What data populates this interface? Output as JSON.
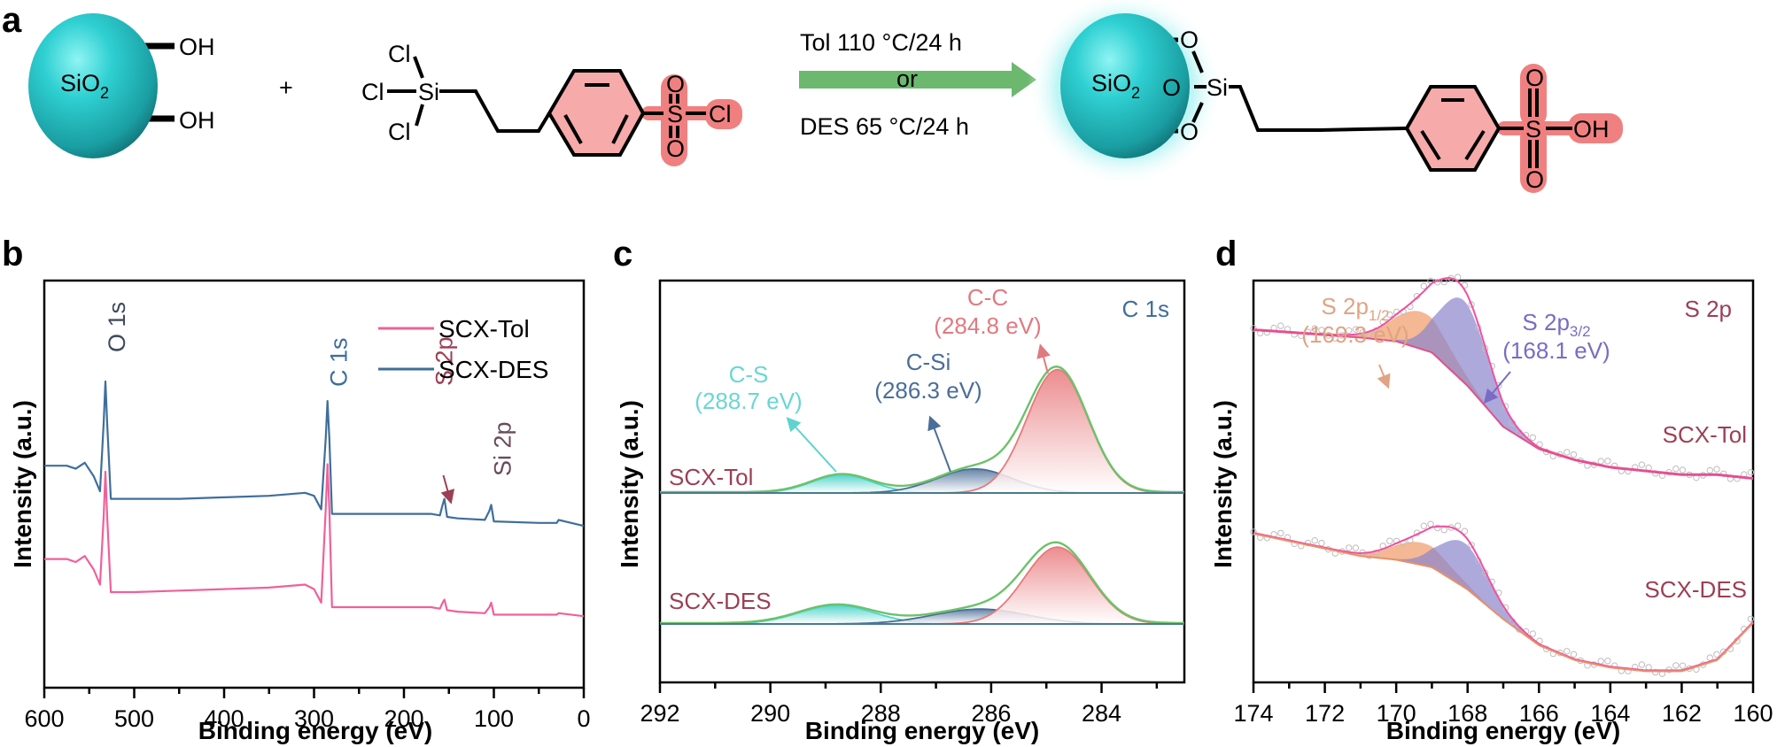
{
  "figure": {
    "panel_letters": [
      "a",
      "b",
      "c",
      "d"
    ],
    "scheme": {
      "reactant_sphere_label": "SiO",
      "reactant_sphere_sub": "2",
      "hydroxyl_labels": [
        "OH",
        "OH"
      ],
      "plus": "+",
      "silane_atoms": {
        "cl_top": "Cl",
        "cl_left": "Cl",
        "cl_bottom": "Cl",
        "si": "Si"
      },
      "sulfonyl_atoms": {
        "o_top": "O",
        "s": "S",
        "cl": "Cl",
        "o_bottom": "O"
      },
      "condition_top": "Tol  110 °C/24 h",
      "condition_mid": "or",
      "condition_bottom": "DES  65 °C/24 h",
      "product_sphere_label": "SiO",
      "product_sphere_sub": "2",
      "product_atoms": {
        "o1": "O",
        "o2": "O",
        "o3": "O",
        "si": "Si",
        "o_top": "O",
        "s": "S",
        "oh": "OH",
        "o_bottom": "O"
      },
      "colors": {
        "sphere": "#2ec9cc",
        "arrow": "#6db86f",
        "highlight": "#f08080"
      }
    }
  },
  "chart_data": [
    {
      "id": "b",
      "type": "line",
      "title": "",
      "xlabel": "Binding energy (eV)",
      "ylabel": "Intensity (a.u.)",
      "xlim": [
        600,
        0
      ],
      "x_reversed": true,
      "xticks": [
        600,
        500,
        400,
        300,
        200,
        100,
        0
      ],
      "xtick_labels": [
        "600",
        "500",
        "400",
        "300",
        "200",
        "100",
        "0"
      ],
      "legend": {
        "position": "top-right",
        "entries": [
          {
            "name": "SCX-Tol",
            "color": "#f0609a"
          },
          {
            "name": "SCX-DES",
            "color": "#3f6e9c"
          }
        ]
      },
      "series": [
        {
          "name": "SCX-DES",
          "color": "#3f6e9c",
          "offset": 1.0,
          "x": [
            600,
            575,
            565,
            555,
            545,
            538,
            534,
            532,
            530,
            526,
            500,
            450,
            400,
            350,
            310,
            300,
            292,
            287,
            285,
            283,
            280,
            250,
            200,
            170,
            160,
            157,
            155,
            152,
            140,
            110,
            105,
            103,
            100,
            50,
            30,
            28,
            0
          ],
          "y": [
            0.62,
            0.62,
            0.6,
            0.64,
            0.55,
            0.45,
            0.9,
            1.18,
            0.9,
            0.4,
            0.4,
            0.4,
            0.41,
            0.42,
            0.44,
            0.42,
            0.33,
            0.8,
            1.05,
            0.8,
            0.3,
            0.3,
            0.3,
            0.3,
            0.29,
            0.36,
            0.4,
            0.28,
            0.27,
            0.26,
            0.32,
            0.36,
            0.25,
            0.24,
            0.24,
            0.26,
            0.22
          ]
        },
        {
          "name": "SCX-Tol",
          "color": "#f0609a",
          "offset": 0.0,
          "x": [
            600,
            575,
            565,
            555,
            545,
            538,
            534,
            532,
            530,
            526,
            500,
            450,
            400,
            350,
            310,
            300,
            292,
            287,
            285,
            283,
            280,
            250,
            200,
            170,
            160,
            157,
            155,
            152,
            140,
            110,
            105,
            103,
            100,
            50,
            30,
            28,
            0
          ],
          "y": [
            0.62,
            0.62,
            0.6,
            0.64,
            0.55,
            0.45,
            0.9,
            1.2,
            0.9,
            0.4,
            0.4,
            0.41,
            0.42,
            0.43,
            0.45,
            0.42,
            0.33,
            0.95,
            1.25,
            0.95,
            0.3,
            0.3,
            0.3,
            0.3,
            0.29,
            0.33,
            0.35,
            0.28,
            0.27,
            0.26,
            0.3,
            0.33,
            0.25,
            0.25,
            0.25,
            0.26,
            0.24
          ]
        }
      ],
      "annotations": [
        {
          "text": "O 1s",
          "x": 532,
          "color": "#404a5e",
          "rotated": true
        },
        {
          "text": "C 1s",
          "x": 285,
          "color": "#3f6e9c",
          "rotated": true
        },
        {
          "text": "S 2p",
          "x": 168,
          "color": "#9c3f55",
          "rotated": true,
          "arrow": true
        },
        {
          "text": "Si 2p",
          "x": 103,
          "color": "#6a4a5a",
          "rotated": true
        }
      ]
    },
    {
      "id": "c",
      "type": "area",
      "title": "C 1s",
      "xlabel": "Binding energy (eV)",
      "ylabel": "Intensity (a.u.)",
      "xlim": [
        292,
        282.5
      ],
      "x_reversed": true,
      "xticks": [
        292,
        290,
        288,
        286,
        284
      ],
      "xtick_labels": [
        "292",
        "290",
        "288",
        "286",
        "284"
      ],
      "samples": [
        {
          "name": "SCX-Tol",
          "components": [
            {
              "name": "C-S",
              "center": 288.7,
              "height": 0.12,
              "fwhm": 1.3,
              "color": "#4fd6cc"
            },
            {
              "name": "C-Si",
              "center": 286.3,
              "height": 0.16,
              "fwhm": 1.6,
              "color": "#4a6e98"
            },
            {
              "name": "C-C",
              "center": 284.8,
              "height": 0.82,
              "fwhm": 1.3,
              "color": "#e8797c"
            }
          ]
        },
        {
          "name": "SCX-DES",
          "components": [
            {
              "name": "C-S",
              "center": 288.8,
              "height": 0.15,
              "fwhm": 1.6,
              "color": "#4fd6cc"
            },
            {
              "name": "C-Si",
              "center": 286.2,
              "height": 0.12,
              "fwhm": 2.0,
              "color": "#4a6e98"
            },
            {
              "name": "C-C",
              "center": 284.8,
              "height": 0.62,
              "fwhm": 1.4,
              "color": "#e8797c"
            }
          ]
        }
      ],
      "envelope_color": "#6cc26a",
      "annotations": [
        {
          "label": "C-S",
          "value": "(288.7 eV)",
          "color": "#6ad6d4"
        },
        {
          "label": "C-Si",
          "value": "(286.3 eV)",
          "color": "#4a6e98"
        },
        {
          "label": "C-C",
          "value": "(284.8 eV)",
          "color": "#e07a80"
        }
      ],
      "sample_label_color": "#9c3f55",
      "title_color": "#3f6e9c"
    },
    {
      "id": "d",
      "type": "area",
      "title": "S 2p",
      "xlabel": "Binding energy (eV)",
      "ylabel": "Intensity (a.u.)",
      "xlim": [
        174,
        160
      ],
      "x_reversed": true,
      "xticks": [
        174,
        172,
        170,
        168,
        166,
        164,
        162,
        160
      ],
      "xtick_labels": [
        "174",
        "172",
        "170",
        "168",
        "166",
        "164",
        "162",
        "160"
      ],
      "samples": [
        {
          "name": "SCX-Tol",
          "background": {
            "x": [
              174,
              171,
              170,
              169,
              168,
              167,
              166,
              165,
              164,
              163,
              162,
              161,
              160
            ],
            "y": [
              0.7,
              0.68,
              0.67,
              0.64,
              0.55,
              0.44,
              0.38,
              0.35,
              0.33,
              0.32,
              0.31,
              0.31,
              0.3
            ]
          },
          "components": [
            {
              "name": "S 2p1/2",
              "center": 169.3,
              "height": 0.1,
              "fwhm": 1.8,
              "color": "#f0a070"
            },
            {
              "name": "S 2p3/2",
              "center": 168.1,
              "height": 0.22,
              "fwhm": 1.6,
              "color": "#8a84cc"
            }
          ]
        },
        {
          "name": "SCX-DES",
          "background": {
            "x": [
              174,
              172,
              171,
              170,
              169,
              168,
              167,
              166,
              165,
              164,
              163,
              162,
              161,
              160
            ],
            "y": [
              0.7,
              0.66,
              0.64,
              0.63,
              0.61,
              0.55,
              0.47,
              0.4,
              0.36,
              0.34,
              0.33,
              0.33,
              0.36,
              0.46
            ]
          },
          "components": [
            {
              "name": "S 2p1/2",
              "center": 169.3,
              "height": 0.06,
              "fwhm": 1.8,
              "color": "#f0a070"
            },
            {
              "name": "S 2p3/2",
              "center": 168.1,
              "height": 0.12,
              "fwhm": 1.6,
              "color": "#8a84cc"
            }
          ]
        }
      ],
      "envelope_color": "#f050a0",
      "raw_marker_color": "#bdbdbd",
      "annotations": [
        {
          "label": "S 2p",
          "sub": "1/2",
          "value": "(169.3 eV)",
          "color": "#e0a484"
        },
        {
          "label": "S 2p",
          "sub": "3/2",
          "value": "(168.1 eV)",
          "color": "#7a6cc4"
        }
      ],
      "sample_label_color": "#9c3f55",
      "title_color": "#9c3f55"
    }
  ]
}
